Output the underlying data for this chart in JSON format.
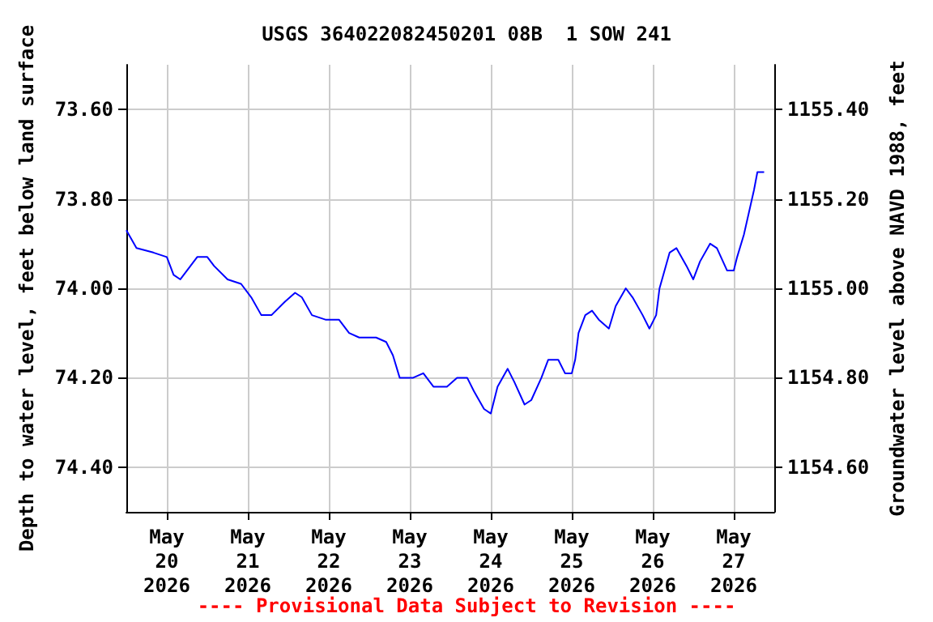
{
  "chart_data": {
    "type": "line",
    "title": "USGS 364022082450201 08B  1 SOW 241",
    "ylabel": "Depth to water level, feet below land surface",
    "y2label": "Groundwater level above NAVD 1988, feet",
    "annotations": [
      "---- Provisional Data Subject to Revision ----"
    ],
    "x": [
      "2026-05-19T12:00",
      "2026-05-19T15:00",
      "2026-05-19T20:00",
      "2026-05-20T00:00",
      "2026-05-20T02:00",
      "2026-05-20T04:00",
      "2026-05-20T07:00",
      "2026-05-20T09:00",
      "2026-05-20T12:00",
      "2026-05-20T14:00",
      "2026-05-20T18:00",
      "2026-05-20T22:00",
      "2026-05-21T01:00",
      "2026-05-21T04:00",
      "2026-05-21T07:00",
      "2026-05-21T11:00",
      "2026-05-21T14:00",
      "2026-05-21T16:00",
      "2026-05-21T19:00",
      "2026-05-21T23:00",
      "2026-05-22T03:00",
      "2026-05-22T06:00",
      "2026-05-22T09:00",
      "2026-05-22T14:00",
      "2026-05-22T17:00",
      "2026-05-22T19:00",
      "2026-05-22T21:00",
      "2026-05-23T01:00",
      "2026-05-23T04:00",
      "2026-05-23T07:00",
      "2026-05-23T11:00",
      "2026-05-23T14:00",
      "2026-05-23T17:00",
      "2026-05-23T19:00",
      "2026-05-23T22:00",
      "2026-05-24T00:00",
      "2026-05-24T02:00",
      "2026-05-24T05:00",
      "2026-05-24T07:00",
      "2026-05-24T10:00",
      "2026-05-24T12:00",
      "2026-05-24T15:00",
      "2026-05-24T17:00",
      "2026-05-24T20:00",
      "2026-05-24T22:00",
      "2026-05-25T00:00",
      "2026-05-25T01:00",
      "2026-05-25T02:00",
      "2026-05-25T04:00",
      "2026-05-25T06:00",
      "2026-05-25T08:00",
      "2026-05-25T11:00",
      "2026-05-25T13:00",
      "2026-05-25T16:00",
      "2026-05-25T18:00",
      "2026-05-25T21:00",
      "2026-05-25T23:00",
      "2026-05-26T01:00",
      "2026-05-26T02:00",
      "2026-05-26T05:00",
      "2026-05-26T07:00",
      "2026-05-26T10:00",
      "2026-05-26T12:00",
      "2026-05-26T14:00",
      "2026-05-26T17:00",
      "2026-05-26T19:00",
      "2026-05-26T22:00",
      "2026-05-27T00:00",
      "2026-05-27T01:00",
      "2026-05-27T03:00",
      "2026-05-27T06:00",
      "2026-05-27T07:00",
      "2026-05-27T09:00"
    ],
    "series": [
      {
        "color": "#0000ff",
        "values": [
          73.87,
          73.91,
          73.92,
          73.93,
          73.97,
          73.98,
          73.95,
          73.93,
          73.93,
          73.95,
          73.98,
          73.99,
          74.02,
          74.06,
          74.06,
          74.03,
          74.01,
          74.02,
          74.06,
          74.07,
          74.07,
          74.1,
          74.11,
          74.11,
          74.12,
          74.15,
          74.2,
          74.2,
          74.19,
          74.22,
          74.22,
          74.2,
          74.2,
          74.23,
          74.27,
          74.28,
          74.22,
          74.18,
          74.21,
          74.26,
          74.25,
          74.2,
          74.16,
          74.16,
          74.19,
          74.19,
          74.16,
          74.1,
          74.06,
          74.05,
          74.07,
          74.09,
          74.04,
          74.0,
          74.02,
          74.06,
          74.09,
          74.06,
          74.0,
          73.92,
          73.91,
          73.95,
          73.98,
          73.94,
          73.9,
          73.91,
          73.96,
          73.96,
          73.93,
          73.88,
          73.78,
          73.74,
          73.74
        ]
      }
    ],
    "xlim": [
      "2026-05-19T12:00",
      "2026-05-27T12:00"
    ],
    "xticks": [
      {
        "value": "2026-05-20",
        "label": "May\n20\n2026"
      },
      {
        "value": "2026-05-21",
        "label": "May\n21\n2026"
      },
      {
        "value": "2026-05-22",
        "label": "May\n22\n2026"
      },
      {
        "value": "2026-05-23",
        "label": "May\n23\n2026"
      },
      {
        "value": "2026-05-24",
        "label": "May\n24\n2026"
      },
      {
        "value": "2026-05-25",
        "label": "May\n25\n2026"
      },
      {
        "value": "2026-05-26",
        "label": "May\n26\n2026"
      },
      {
        "value": "2026-05-27",
        "label": "May\n27\n2026"
      }
    ],
    "ylim": [
      74.5,
      73.5
    ],
    "yticks": [
      {
        "value": 73.6,
        "label": "73.60"
      },
      {
        "value": 73.8,
        "label": "73.80"
      },
      {
        "value": 74.0,
        "label": "74.00"
      },
      {
        "value": 74.2,
        "label": "74.20"
      },
      {
        "value": 74.4,
        "label": "74.40"
      }
    ],
    "y2lim": [
      1154.5,
      1155.5
    ],
    "y2ticks": [
      {
        "value": 1154.6,
        "label": "1154.60"
      },
      {
        "value": 1154.8,
        "label": "1154.80"
      },
      {
        "value": 1155.0,
        "label": "1155.00"
      },
      {
        "value": 1155.2,
        "label": "1155.20"
      },
      {
        "value": 1155.4,
        "label": "1155.40"
      }
    ],
    "grid": true,
    "marker": "none",
    "line_style": "solid"
  }
}
